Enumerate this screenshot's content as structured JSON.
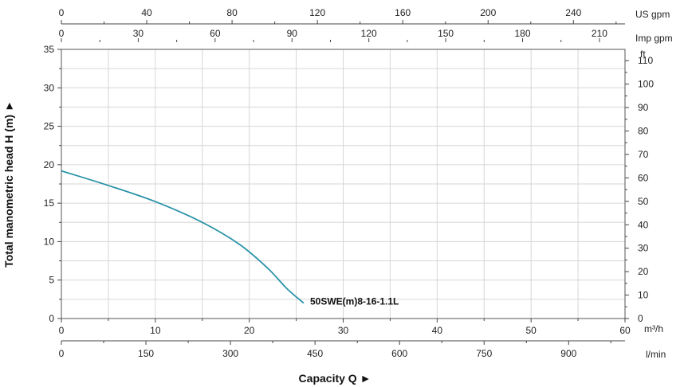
{
  "chart_data": {
    "type": "line",
    "xlabel": "Capacity Q ►",
    "ylabel": "Total manometric head H (m) ►",
    "x_unit": "m³/h",
    "ylim": [
      0,
      35
    ],
    "xlim": [
      0,
      60
    ],
    "grid": true,
    "y_ticks": [
      "0",
      "5",
      "10",
      "15",
      "20",
      "25",
      "30",
      "35"
    ],
    "x_ticks": [
      "0",
      "10",
      "20",
      "30",
      "40",
      "50",
      "60"
    ],
    "secondary_axes": {
      "top_us_gpm": {
        "label": "US gpm",
        "ticks": [
          "0",
          "40",
          "80",
          "120",
          "160",
          "200",
          "240"
        ],
        "tick_values": [
          0,
          40,
          80,
          120,
          160,
          200,
          240
        ]
      },
      "top_imp_gpm": {
        "label": "Imp gpm",
        "ticks": [
          "0",
          "30",
          "60",
          "90",
          "120",
          "150",
          "180",
          "210"
        ],
        "tick_values": [
          0,
          30,
          60,
          90,
          120,
          150,
          180,
          210
        ]
      },
      "right_ft": {
        "label": "ft",
        "ticks": [
          "0",
          "10",
          "20",
          "30",
          "40",
          "50",
          "60",
          "70",
          "80",
          "90",
          "100",
          "110"
        ],
        "tick_values": [
          0,
          10,
          20,
          30,
          40,
          50,
          60,
          70,
          80,
          90,
          100,
          110
        ]
      },
      "bottom_lmin": {
        "label": "l/min",
        "ticks": [
          "0",
          "150",
          "300",
          "450",
          "600",
          "750",
          "900"
        ],
        "tick_values": [
          0,
          150,
          300,
          450,
          600,
          750,
          900
        ]
      }
    },
    "series": [
      {
        "name": "50SWE(m)8-16-1.1L",
        "color": "#2a93a8",
        "x": [
          0,
          5,
          10,
          15,
          19,
          22,
          24,
          25.8
        ],
        "y": [
          19.2,
          17.3,
          15.2,
          12.5,
          9.6,
          6.5,
          3.9,
          2.0
        ]
      }
    ]
  }
}
